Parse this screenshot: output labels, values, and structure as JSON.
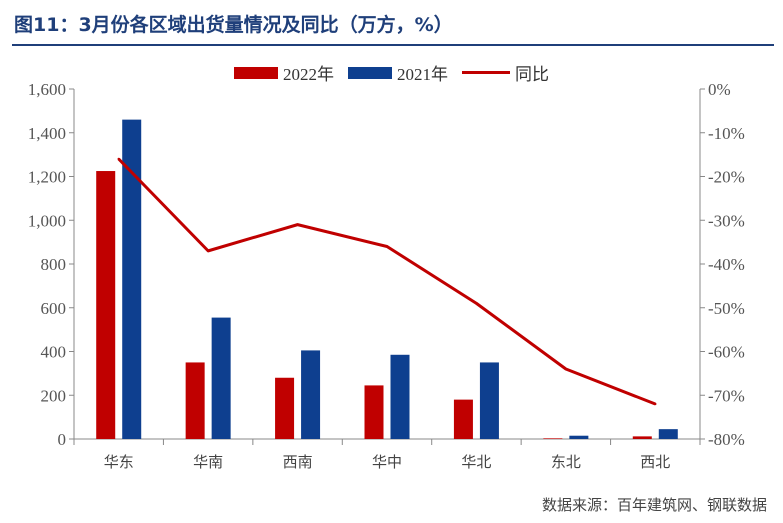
{
  "title": "图11：3月份各区域出货量情况及同比（万方，%）",
  "source": "数据来源：百年建筑网、钢联数据",
  "chart_data": {
    "type": "bar",
    "categories": [
      "华东",
      "华南",
      "西南",
      "华中",
      "华北",
      "东北",
      "西北"
    ],
    "series": [
      {
        "name": "2022年",
        "type": "bar",
        "axis": "left",
        "color": "#c00000",
        "values": [
          1225,
          350,
          280,
          245,
          180,
          3,
          12
        ]
      },
      {
        "name": "2021年",
        "type": "bar",
        "axis": "left",
        "color": "#0e3f8f",
        "values": [
          1460,
          555,
          405,
          385,
          350,
          15,
          45
        ]
      },
      {
        "name": "同比",
        "type": "line",
        "axis": "right",
        "color": "#c00000",
        "values": [
          -16,
          -37,
          -31,
          -36,
          -49,
          -64,
          -72
        ]
      }
    ],
    "y_left": {
      "min": 0,
      "max": 1600,
      "step": 200,
      "tick_labels": [
        "0",
        "200",
        "400",
        "600",
        "800",
        "1,000",
        "1,200",
        "1,400",
        "1,600"
      ]
    },
    "y_right": {
      "min": -80,
      "max": 0,
      "step": 10,
      "tick_labels": [
        "-80%",
        "-70%",
        "-60%",
        "-50%",
        "-40%",
        "-30%",
        "-20%",
        "-10%",
        "0%"
      ]
    },
    "legend_position": "top",
    "grid": false
  }
}
